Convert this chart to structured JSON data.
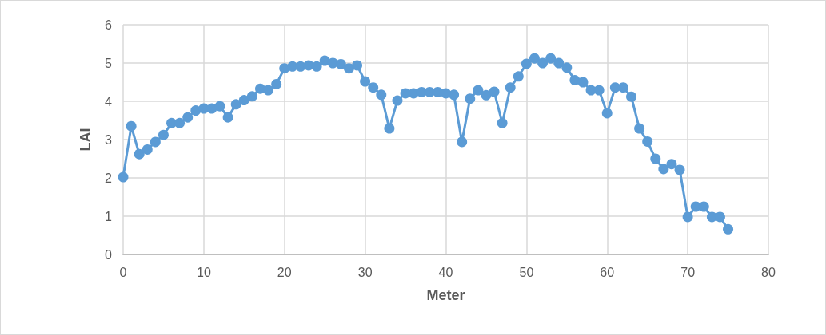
{
  "chart_data": {
    "type": "line",
    "xlabel": "Meter",
    "ylabel": "LAI",
    "x": [
      0,
      1,
      2,
      3,
      4,
      5,
      6,
      7,
      8,
      9,
      10,
      11,
      12,
      13,
      14,
      15,
      16,
      17,
      18,
      19,
      20,
      21,
      22,
      23,
      24,
      25,
      26,
      27,
      28,
      29,
      30,
      31,
      32,
      33,
      34,
      35,
      36,
      37,
      38,
      39,
      40,
      41,
      42,
      43,
      44,
      45,
      46,
      47,
      48,
      49,
      50,
      51,
      52,
      53,
      54,
      55,
      56,
      57,
      58,
      59,
      60,
      61,
      62,
      63,
      64,
      65,
      66,
      67,
      68,
      69,
      70,
      71,
      72,
      73,
      74,
      75
    ],
    "series": [
      {
        "color": "#5b9bd5",
        "values": [
          2.02,
          3.35,
          2.62,
          2.74,
          2.94,
          3.12,
          3.43,
          3.43,
          3.58,
          3.76,
          3.81,
          3.81,
          3.87,
          3.58,
          3.92,
          4.03,
          4.13,
          4.33,
          4.29,
          4.45,
          4.86,
          4.91,
          4.91,
          4.94,
          4.91,
          5.06,
          5.0,
          4.97,
          4.86,
          4.94,
          4.52,
          4.36,
          4.17,
          3.29,
          4.02,
          4.21,
          4.21,
          4.24,
          4.24,
          4.24,
          4.21,
          4.17,
          2.94,
          4.07,
          4.29,
          4.16,
          4.25,
          3.43,
          4.36,
          4.65,
          4.98,
          5.12,
          5.0,
          5.12,
          5.0,
          4.88,
          4.55,
          4.5,
          4.29,
          4.29,
          3.69,
          4.36,
          4.36,
          4.12,
          3.29,
          2.95,
          2.5,
          2.23,
          2.36,
          2.21,
          0.98,
          1.25,
          1.25,
          0.98,
          0.98,
          0.66
        ]
      }
    ],
    "xlim": [
      0,
      80
    ],
    "xticks": [
      0,
      10,
      20,
      30,
      40,
      50,
      60,
      70,
      80
    ],
    "ylim": [
      0,
      6
    ],
    "yticks": [
      0,
      1,
      2,
      3,
      4,
      5,
      6
    ],
    "grid": true,
    "marker": "circle",
    "line_style": "solid"
  }
}
